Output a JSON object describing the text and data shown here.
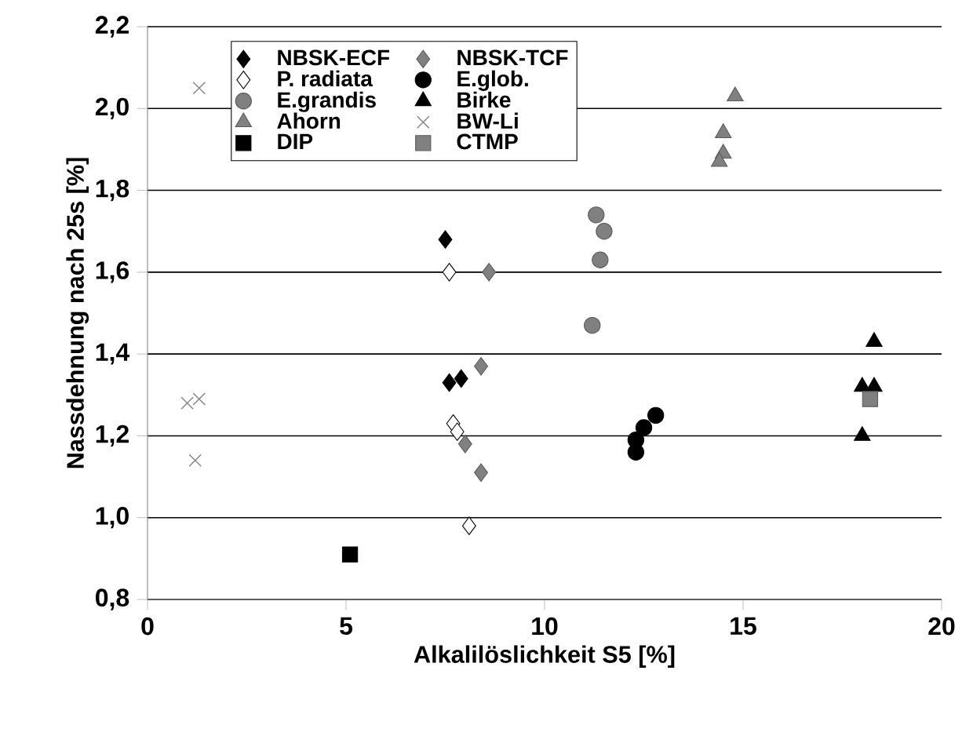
{
  "chart_data": {
    "type": "scatter",
    "xlabel": "Alkalilöslichkeit S5 [%]",
    "ylabel": "Nassdehnung nach 25s [%]",
    "xlim": [
      0,
      20
    ],
    "ylim": [
      0.8,
      2.2
    ],
    "xticks": [
      0,
      5,
      10,
      15,
      20
    ],
    "yticks": [
      {
        "value": 0.8,
        "label": "0,8"
      },
      {
        "value": 1.0,
        "label": "1,0"
      },
      {
        "value": 1.2,
        "label": "1,2"
      },
      {
        "value": 1.4,
        "label": "1,4"
      },
      {
        "value": 1.6,
        "label": "1,6"
      },
      {
        "value": 1.8,
        "label": "1,8"
      },
      {
        "value": 2.0,
        "label": "2,0"
      },
      {
        "value": 2.2,
        "label": "2,2"
      }
    ],
    "grid": "y",
    "legend": "top left",
    "series": [
      {
        "name": "NBSK-ECF",
        "color": "#000000",
        "marker": "diamond",
        "x": [
          7.5,
          7.6,
          7.9
        ],
        "values": [
          1.68,
          1.33,
          1.34
        ]
      },
      {
        "name": "NBSK-TCF",
        "color": "#808080",
        "marker": "diamond",
        "x": [
          8.6,
          8.4,
          8.0,
          8.4
        ],
        "values": [
          1.6,
          1.37,
          1.18,
          1.11
        ]
      },
      {
        "name": "P. radiata",
        "color": "#ffffff",
        "marker": "diamond",
        "x": [
          7.6,
          7.7,
          7.8,
          8.1
        ],
        "values": [
          1.6,
          1.23,
          1.21,
          0.98
        ]
      },
      {
        "name": "E.glob.",
        "color": "#000000",
        "marker": "circle",
        "x": [
          12.3,
          12.3,
          12.5,
          12.8
        ],
        "values": [
          1.16,
          1.19,
          1.22,
          1.25
        ]
      },
      {
        "name": "E.grandis",
        "color": "#808080",
        "marker": "circle",
        "x": [
          11.3,
          11.5,
          11.4,
          11.2
        ],
        "values": [
          1.74,
          1.7,
          1.63,
          1.47
        ]
      },
      {
        "name": "Birke",
        "color": "#000000",
        "marker": "triangle",
        "x": [
          18.3,
          18.0,
          18.3,
          18.0
        ],
        "values": [
          1.43,
          1.32,
          1.32,
          1.2
        ]
      },
      {
        "name": "Ahorn",
        "color": "#808080",
        "marker": "triangle",
        "x": [
          14.8,
          14.5,
          14.5,
          14.4
        ],
        "values": [
          2.03,
          1.94,
          1.89,
          1.87
        ]
      },
      {
        "name": "BW-Li",
        "color": "#808080",
        "marker": "cross",
        "x": [
          1.3,
          1.0,
          1.3,
          1.2
        ],
        "values": [
          2.05,
          1.28,
          1.29,
          1.14
        ]
      },
      {
        "name": "DIP",
        "color": "#000000",
        "marker": "square",
        "x": [
          5.1
        ],
        "values": [
          0.91
        ]
      },
      {
        "name": "CTMP",
        "color": "#808080",
        "marker": "square",
        "x": [
          18.2
        ],
        "values": [
          1.29
        ]
      }
    ]
  }
}
